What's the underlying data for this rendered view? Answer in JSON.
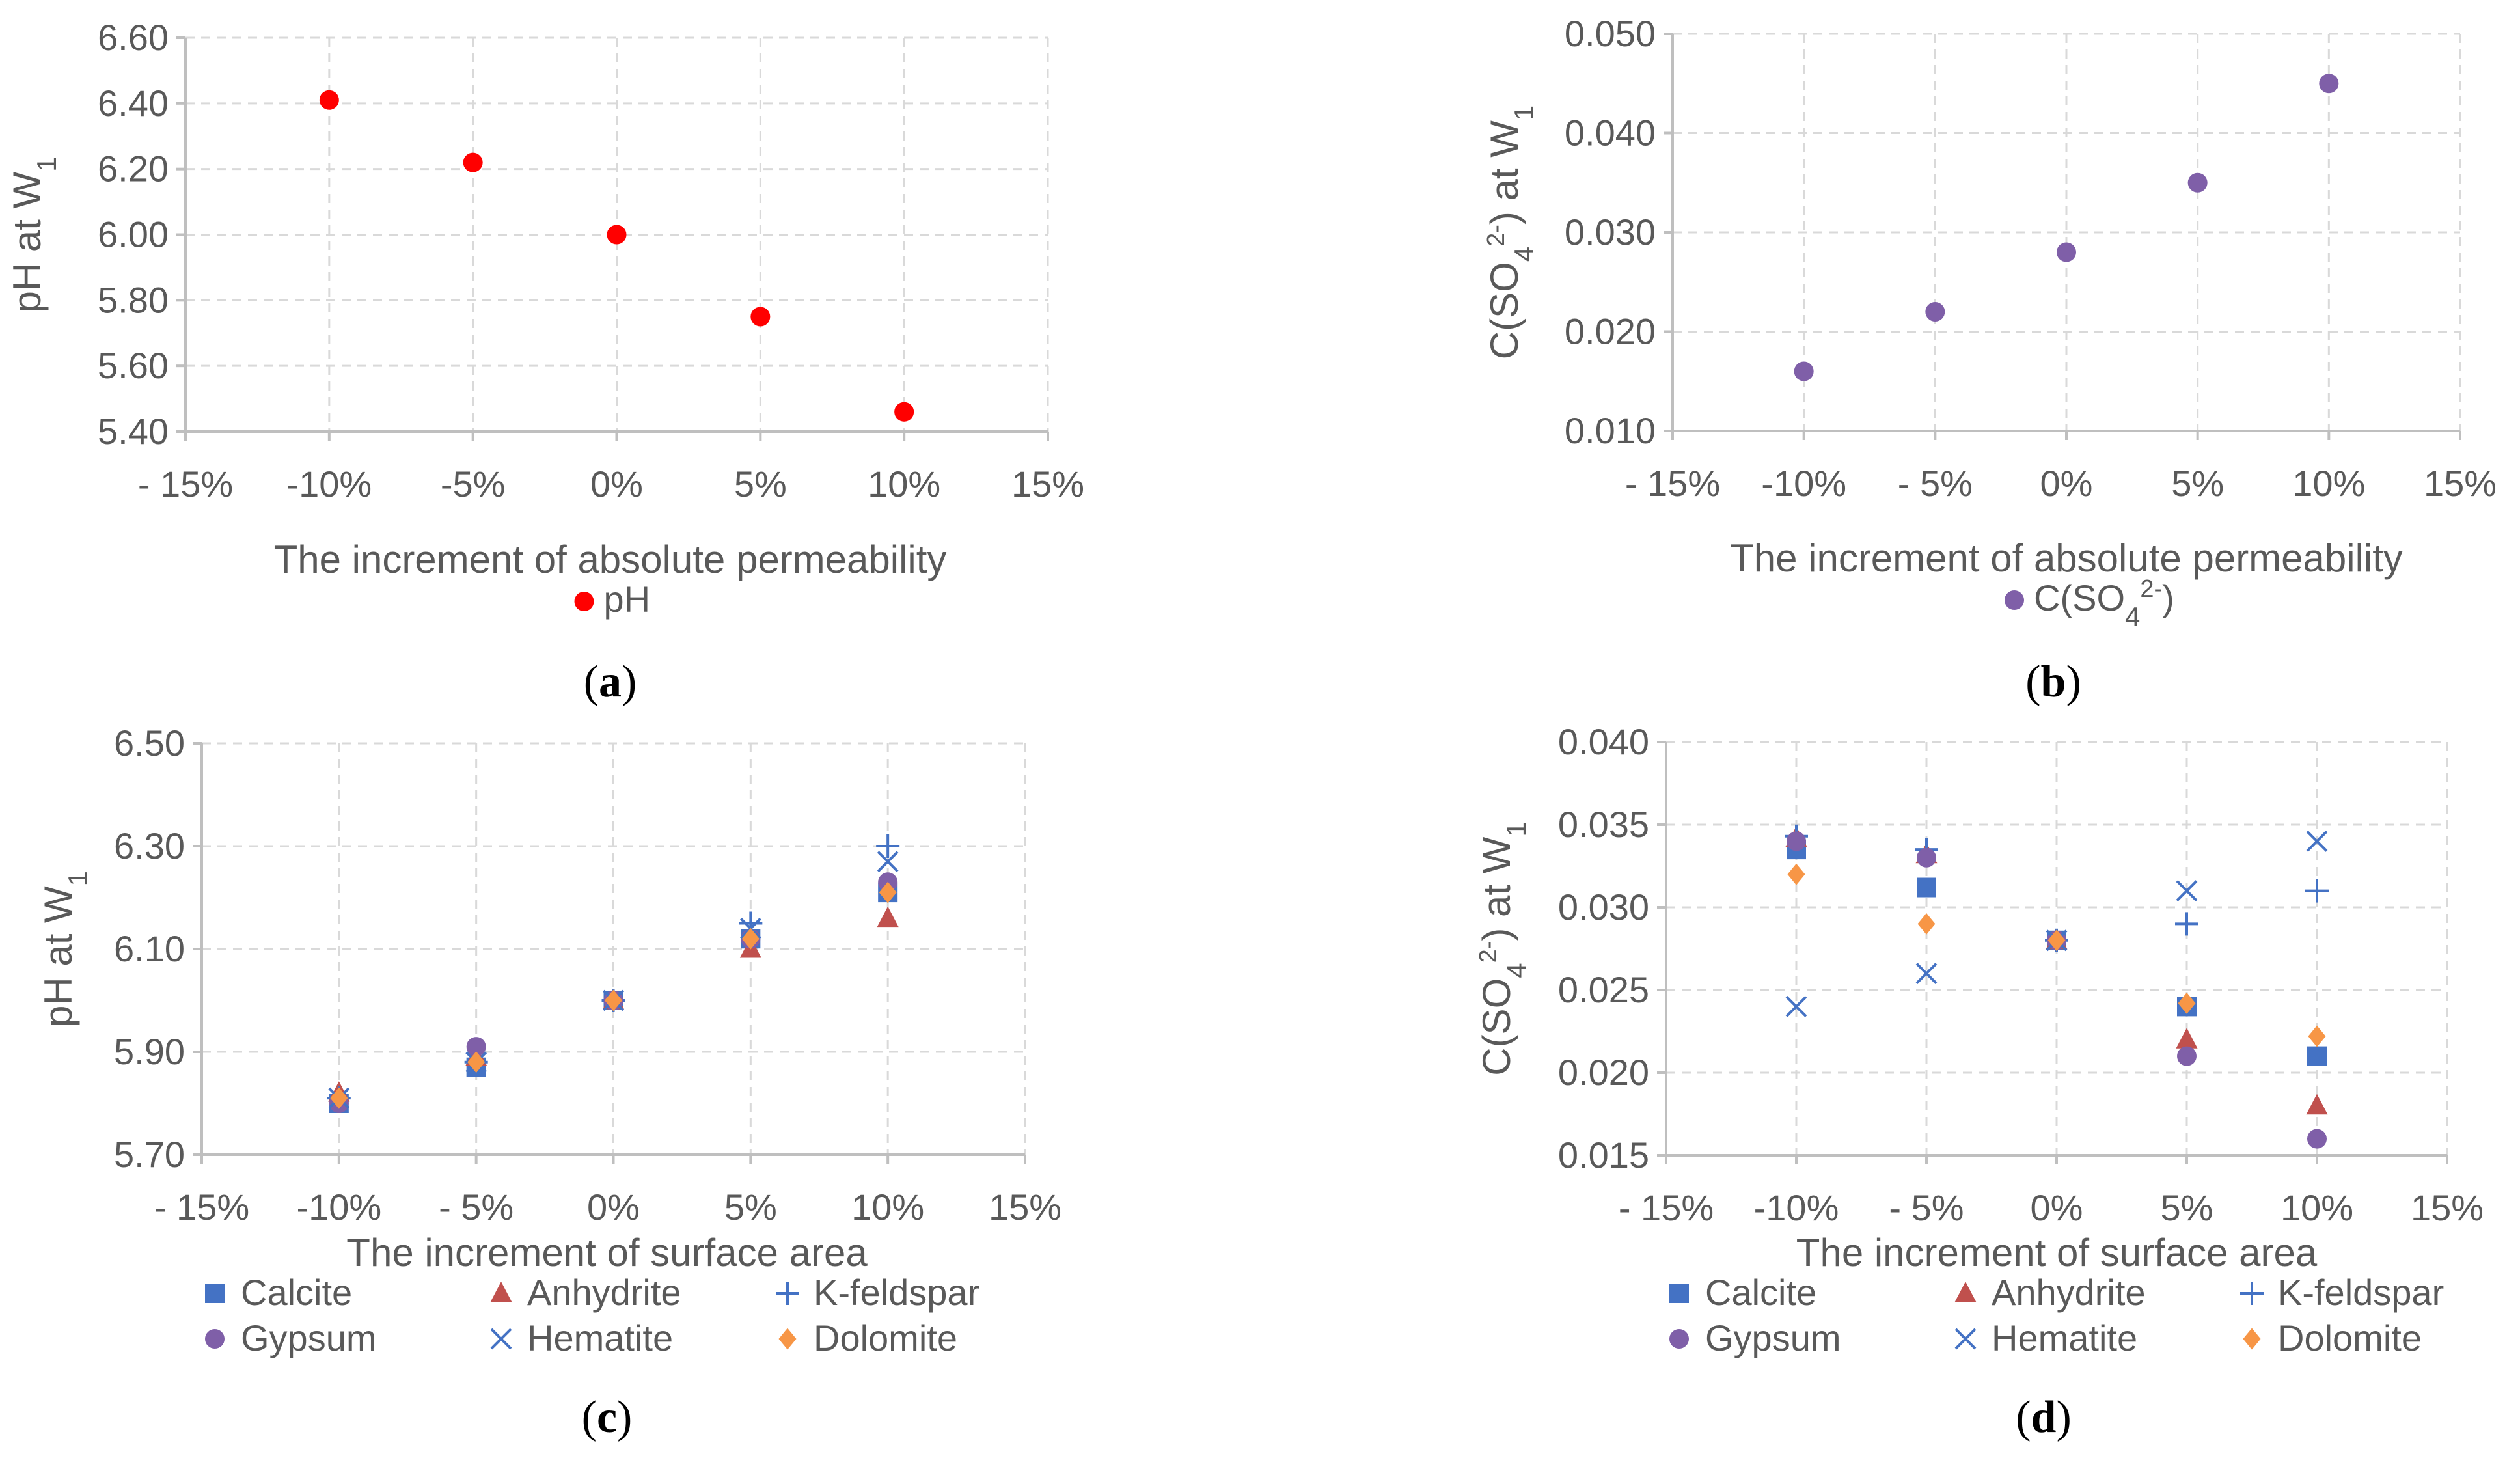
{
  "colors": {
    "pH": "#ff0000",
    "SO4": "#7f5fa8",
    "Calcite": "#4472c4",
    "Anhydrite": "#c0504d",
    "K-feldspar": "#4472c4",
    "Gypsum": "#7f5fa8",
    "Hematite": "#4472c4",
    "Dolomite": "#f79646"
  },
  "chart_data": [
    {
      "id": "a",
      "panel_label": "a",
      "type": "scatter",
      "xlabel": "The increment of  absolute permeability",
      "ylabel_parts": [
        "pH at W",
        "1",
        ""
      ],
      "x_ticks": [
        "- 15%",
        "-10%",
        "-5%",
        "0%",
        "5%",
        "10%",
        "15%"
      ],
      "x_values": [
        -15,
        -10,
        -5,
        0,
        5,
        10,
        15
      ],
      "xlim": [
        -15,
        15
      ],
      "ylim": [
        5.4,
        6.6
      ],
      "y_ticks": [
        "5.40",
        "5.60",
        "5.80",
        "6.00",
        "6.20",
        "6.40",
        "6.60"
      ],
      "y_tick_values": [
        5.4,
        5.6,
        5.8,
        6.0,
        6.2,
        6.4,
        6.6
      ],
      "legend_position": "bottom",
      "legend_columns": 1,
      "series": [
        {
          "name": "pH",
          "marker": "circle",
          "color_key": "pH",
          "x": [
            -10,
            -5,
            0,
            5,
            10
          ],
          "y": [
            6.41,
            6.22,
            6.0,
            5.75,
            5.46
          ]
        }
      ]
    },
    {
      "id": "b",
      "panel_label": "b",
      "type": "scatter",
      "xlabel": "The increment of  absolute permeability",
      "ylabel_parts": [
        "C(SO",
        "4",
        "2-",
        ") at W",
        "1"
      ],
      "x_ticks": [
        "- 15%",
        "-10%",
        "- 5%",
        "0%",
        "5%",
        "10%",
        "15%"
      ],
      "x_values": [
        -15,
        -10,
        -5,
        0,
        5,
        10,
        15
      ],
      "xlim": [
        -15,
        15
      ],
      "ylim": [
        0.01,
        0.05
      ],
      "y_ticks": [
        "0.010",
        "0.020",
        "0.030",
        "0.040",
        "0.050"
      ],
      "y_tick_values": [
        0.01,
        0.02,
        0.03,
        0.04,
        0.05
      ],
      "legend_position": "bottom",
      "legend_columns": 1,
      "series": [
        {
          "name": "C(SO4 2-)",
          "name_parts": [
            "C(SO",
            "4",
            "2-",
            ")"
          ],
          "marker": "circle",
          "color_key": "SO4",
          "x": [
            -10,
            -5,
            0,
            5,
            10
          ],
          "y": [
            0.016,
            0.022,
            0.028,
            0.035,
            0.045
          ]
        }
      ]
    },
    {
      "id": "c",
      "panel_label": "c",
      "type": "scatter",
      "xlabel": "The increment of  surface area",
      "ylabel_parts": [
        "pH at W",
        "1",
        ""
      ],
      "x_ticks": [
        "- 15%",
        "-10%",
        "- 5%",
        "0%",
        "5%",
        "10%",
        "15%"
      ],
      "x_values": [
        -15,
        -10,
        -5,
        0,
        5,
        10,
        15
      ],
      "xlim": [
        -15,
        15
      ],
      "ylim": [
        5.7,
        6.5
      ],
      "y_ticks": [
        "5.70",
        "5.90",
        "6.10",
        "6.30",
        "6.50"
      ],
      "y_tick_values": [
        5.7,
        5.9,
        6.1,
        6.3,
        6.5
      ],
      "legend_position": "bottom",
      "legend_columns": 3,
      "series": [
        {
          "name": "Calcite",
          "marker": "square",
          "color_key": "Calcite",
          "x": [
            -10,
            -5,
            0,
            5,
            10
          ],
          "y": [
            5.8,
            5.87,
            6.0,
            6.12,
            6.21
          ]
        },
        {
          "name": "Anhydrite",
          "marker": "triangle",
          "color_key": "Anhydrite",
          "x": [
            -10,
            -5,
            0,
            5,
            10
          ],
          "y": [
            5.82,
            5.89,
            6.0,
            6.1,
            6.16
          ]
        },
        {
          "name": "K-feldspar",
          "marker": "plus",
          "color_key": "K-feldspar",
          "x": [
            -10,
            -5,
            0,
            5,
            10
          ],
          "y": [
            5.81,
            5.88,
            6.0,
            6.15,
            6.3
          ]
        },
        {
          "name": "Gypsum",
          "marker": "circle",
          "color_key": "Gypsum",
          "x": [
            -10,
            -5,
            0,
            5,
            10
          ],
          "y": [
            5.8,
            5.91,
            6.0,
            6.12,
            6.23
          ]
        },
        {
          "name": "Hematite",
          "marker": "x",
          "color_key": "Hematite",
          "x": [
            -10,
            -5,
            0,
            5,
            10
          ],
          "y": [
            5.81,
            5.88,
            6.0,
            6.14,
            6.27
          ]
        },
        {
          "name": "Dolomite",
          "marker": "diamond",
          "color_key": "Dolomite",
          "x": [
            -10,
            -5,
            0,
            5,
            10
          ],
          "y": [
            5.81,
            5.88,
            6.0,
            6.12,
            6.21
          ]
        }
      ]
    },
    {
      "id": "d",
      "panel_label": "d",
      "type": "scatter",
      "xlabel": "The increment of  surface area",
      "ylabel_parts": [
        "C(SO",
        "4",
        "2-",
        ") at W",
        "1"
      ],
      "x_ticks": [
        "- 15%",
        "-10%",
        "- 5%",
        "0%",
        "5%",
        "10%",
        "15%"
      ],
      "x_values": [
        -15,
        -10,
        -5,
        0,
        5,
        10,
        15
      ],
      "xlim": [
        -15,
        15
      ],
      "ylim": [
        0.015,
        0.04
      ],
      "y_ticks": [
        "0.015",
        "0.020",
        "0.025",
        "0.030",
        "0.035",
        "0.040"
      ],
      "y_tick_values": [
        0.015,
        0.02,
        0.025,
        0.03,
        0.035,
        0.04
      ],
      "legend_position": "bottom",
      "legend_columns": 3,
      "series": [
        {
          "name": "Calcite",
          "marker": "square",
          "color_key": "Calcite",
          "x": [
            -10,
            -5,
            0,
            5,
            10
          ],
          "y": [
            0.0335,
            0.0312,
            0.028,
            0.024,
            0.021
          ]
        },
        {
          "name": "Anhydrite",
          "marker": "triangle",
          "color_key": "Anhydrite",
          "x": [
            -10,
            -5,
            0,
            5,
            10
          ],
          "y": [
            0.0342,
            0.0332,
            0.028,
            0.022,
            0.018
          ]
        },
        {
          "name": "K-feldspar",
          "marker": "plus",
          "color_key": "K-feldspar",
          "x": [
            -10,
            -5,
            0,
            5,
            10
          ],
          "y": [
            0.0343,
            0.0335,
            0.028,
            0.029,
            0.031
          ]
        },
        {
          "name": "Gypsum",
          "marker": "circle",
          "color_key": "Gypsum",
          "x": [
            -10,
            -5,
            0,
            5,
            10
          ],
          "y": [
            0.034,
            0.033,
            0.028,
            0.021,
            0.016
          ]
        },
        {
          "name": "Hematite",
          "marker": "x",
          "color_key": "Hematite",
          "x": [
            -10,
            -5,
            0,
            5,
            10
          ],
          "y": [
            0.024,
            0.026,
            0.028,
            0.031,
            0.034
          ]
        },
        {
          "name": "Dolomite",
          "marker": "diamond",
          "color_key": "Dolomite",
          "x": [
            -10,
            -5,
            0,
            5,
            10
          ],
          "y": [
            0.032,
            0.029,
            0.028,
            0.0242,
            0.0222
          ]
        }
      ]
    }
  ]
}
